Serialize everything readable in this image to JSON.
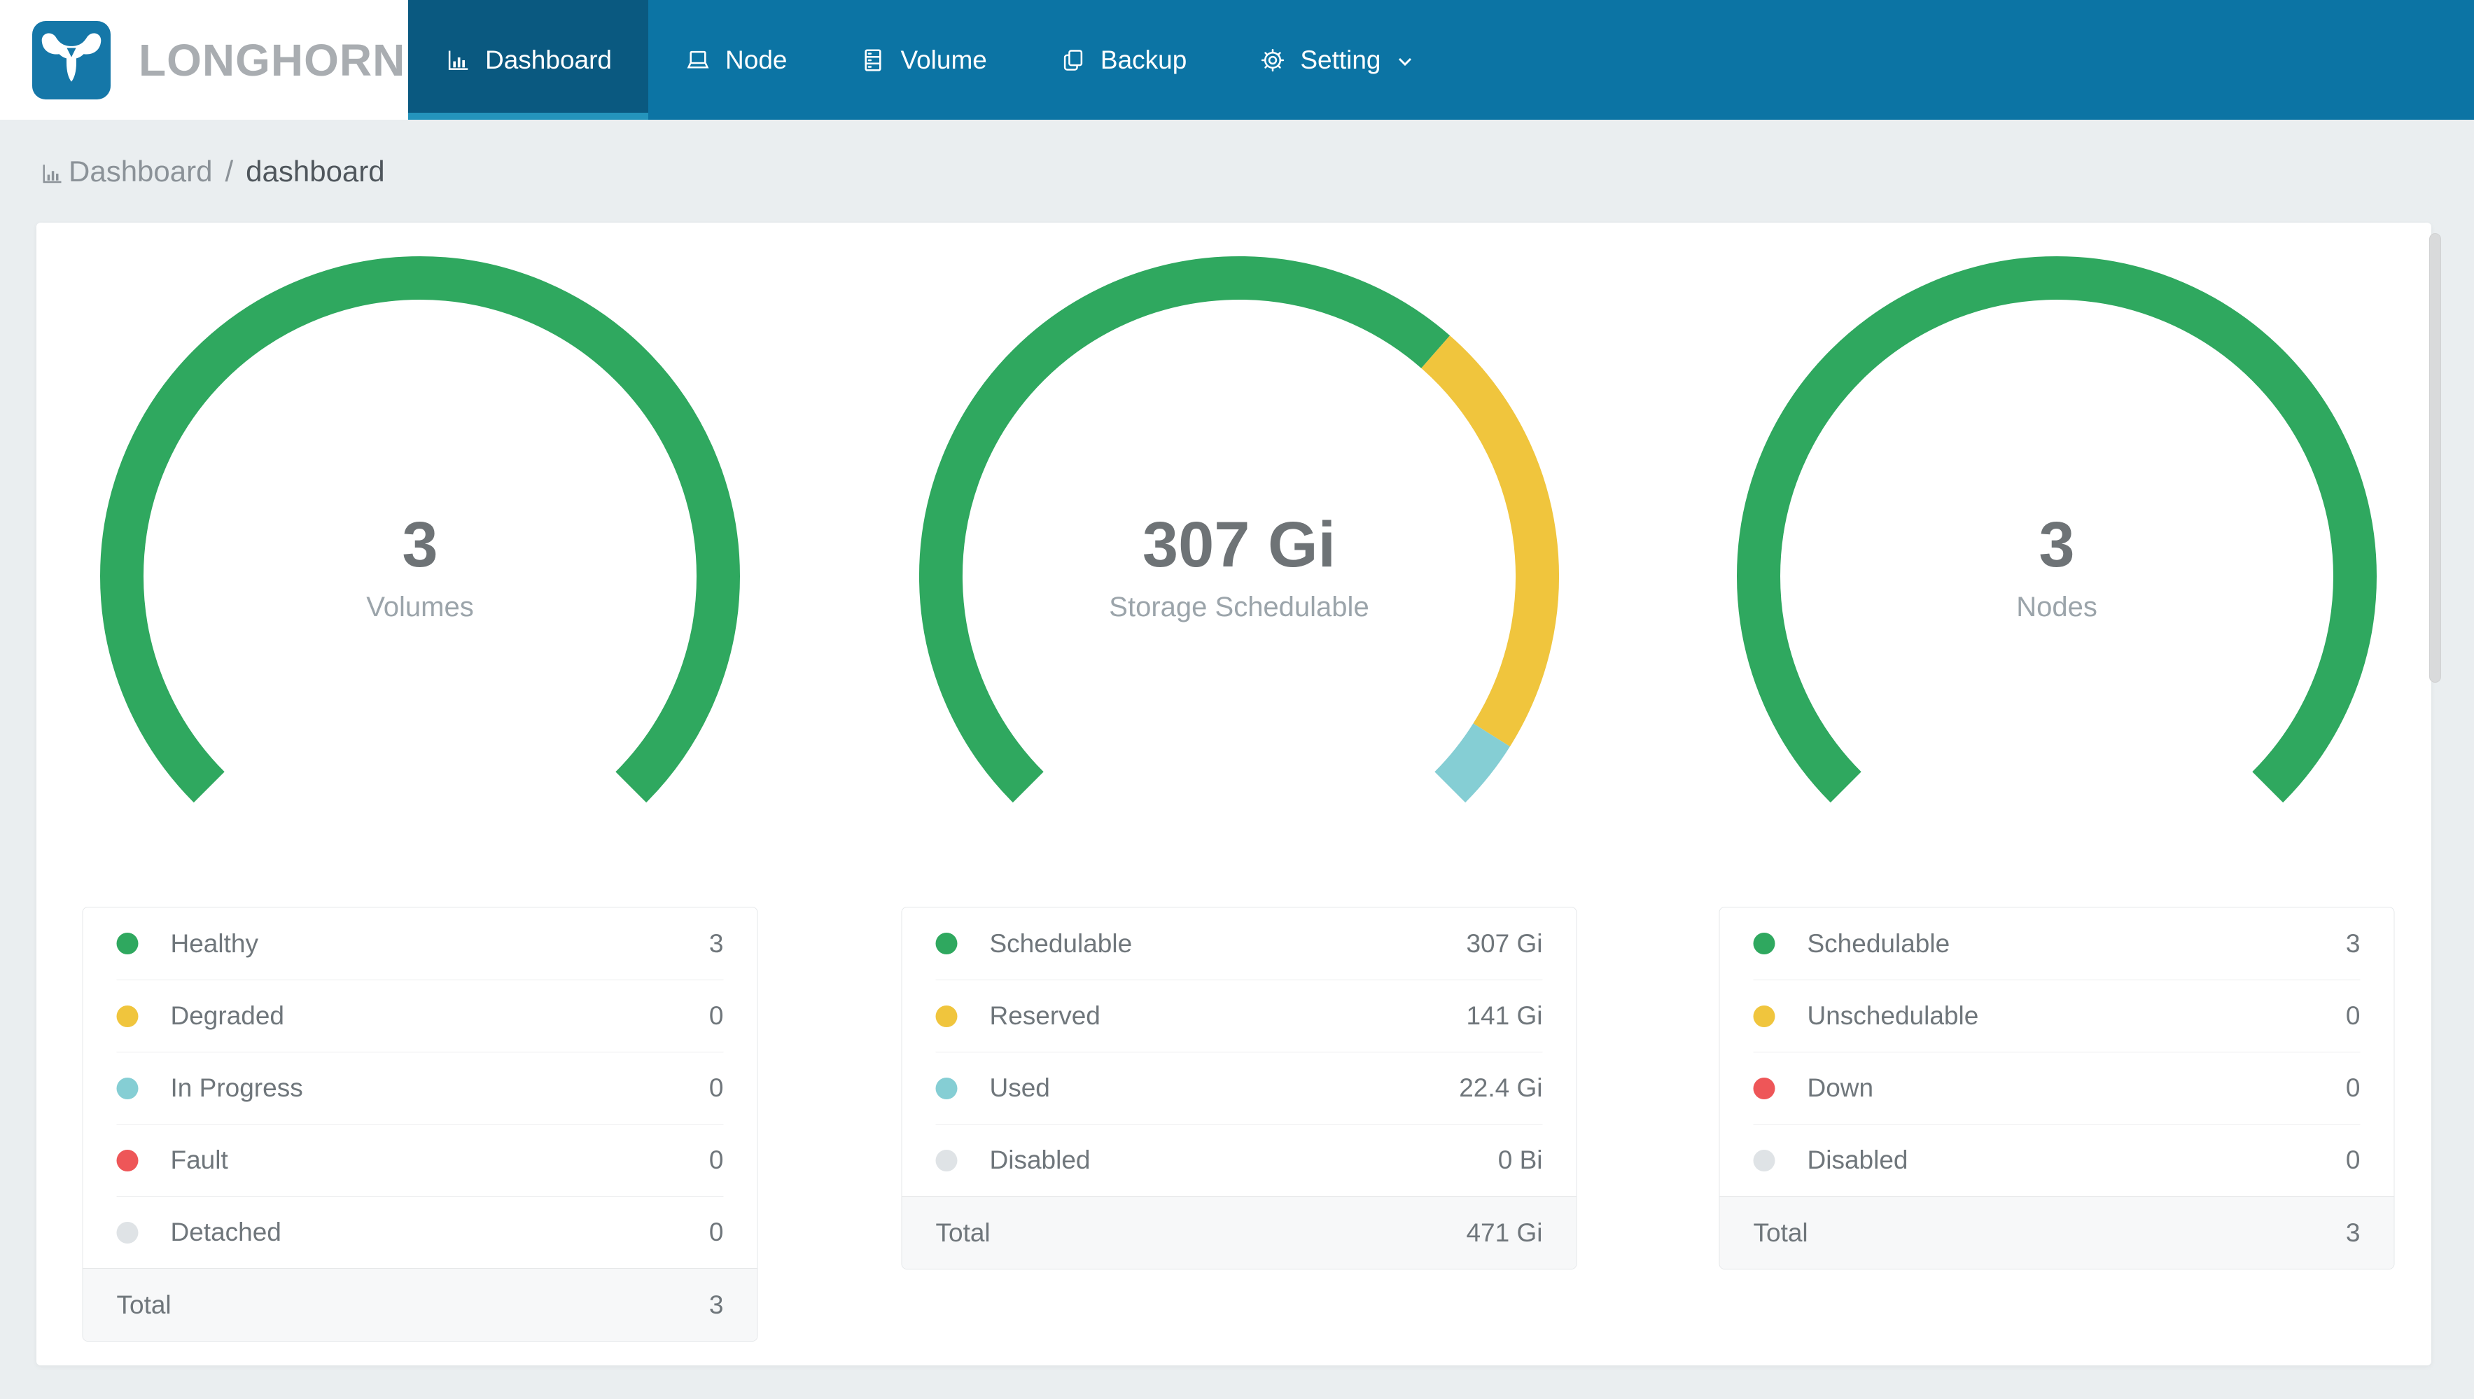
{
  "header": {
    "brand": "LONGHORN",
    "nav_items": [
      {
        "id": "dashboard",
        "label": "Dashboard",
        "icon": "bar-chart",
        "active": true,
        "caret": false
      },
      {
        "id": "node",
        "label": "Node",
        "icon": "laptop",
        "active": false,
        "caret": false
      },
      {
        "id": "volume",
        "label": "Volume",
        "icon": "cabinet",
        "active": false,
        "caret": false
      },
      {
        "id": "backup",
        "label": "Backup",
        "icon": "copy",
        "active": false,
        "caret": false
      },
      {
        "id": "setting",
        "label": "Setting",
        "icon": "gear",
        "active": false,
        "caret": true
      }
    ]
  },
  "breadcrumb": {
    "section": "Dashboard",
    "separator": "/",
    "page": "dashboard"
  },
  "chart_data": [
    {
      "type": "gauge",
      "title": "Volumes",
      "center_value": "3",
      "arc_total_degrees": 270,
      "arc_start_degree": 135,
      "segments": [
        {
          "label": "Healthy",
          "value": 3,
          "display": "3",
          "color": "#2FA85F"
        },
        {
          "label": "Degraded",
          "value": 0,
          "display": "0",
          "color": "#F0C53D"
        },
        {
          "label": "In Progress",
          "value": 0,
          "display": "0",
          "color": "#85CED4"
        },
        {
          "label": "Fault",
          "value": 0,
          "display": "0",
          "color": "#EE5658"
        },
        {
          "label": "Detached",
          "value": 0,
          "display": "0",
          "color": "#DFE3E6"
        }
      ],
      "legend_total": {
        "label": "Total",
        "display": "3"
      }
    },
    {
      "type": "gauge",
      "title": "Storage Schedulable",
      "center_value": "307 Gi",
      "arc_total_degrees": 270,
      "arc_start_degree": 135,
      "segments": [
        {
          "label": "Schedulable",
          "value": 307,
          "display": "307 Gi",
          "color": "#2FA85F"
        },
        {
          "label": "Reserved",
          "value": 141,
          "display": "141 Gi",
          "color": "#F0C53D"
        },
        {
          "label": "Used",
          "value": 22.4,
          "display": "22.4 Gi",
          "color": "#85CED4"
        },
        {
          "label": "Disabled",
          "value": 0,
          "display": "0 Bi",
          "color": "#DFE3E6"
        }
      ],
      "legend_total": {
        "label": "Total",
        "display": "471 Gi"
      }
    },
    {
      "type": "gauge",
      "title": "Nodes",
      "center_value": "3",
      "arc_total_degrees": 270,
      "arc_start_degree": 135,
      "segments": [
        {
          "label": "Schedulable",
          "value": 3,
          "display": "3",
          "color": "#2FA85F"
        },
        {
          "label": "Unschedulable",
          "value": 0,
          "display": "0",
          "color": "#F0C53D"
        },
        {
          "label": "Down",
          "value": 0,
          "display": "0",
          "color": "#EE5658"
        },
        {
          "label": "Disabled",
          "value": 0,
          "display": "0",
          "color": "#DFE3E6"
        }
      ],
      "legend_total": {
        "label": "Total",
        "display": "3"
      }
    }
  ],
  "colors": {
    "nav_bg": "#0C74A4",
    "nav_active_bg": "#0A5980",
    "nav_active_underline": "#2494BC",
    "logo_blue": "#1577A8",
    "brand_text": "#A9ADB1",
    "green": "#2FA85F",
    "yellow": "#F0C53D",
    "teal": "#85CED4",
    "red": "#EE5658",
    "disabled_gray": "#DFE3E6",
    "page_bg": "#EAEEF0"
  }
}
